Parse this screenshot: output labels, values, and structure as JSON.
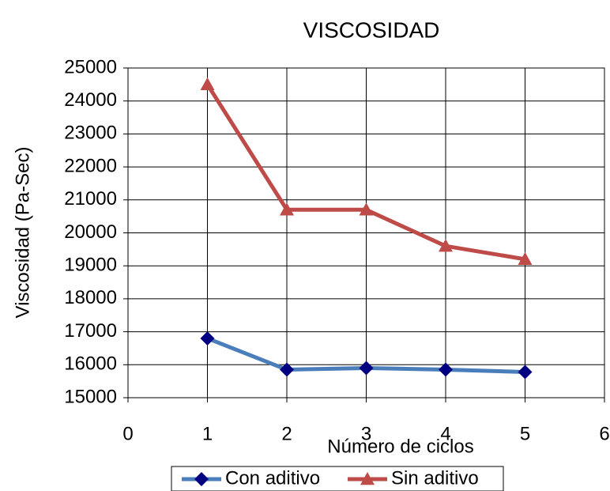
{
  "chart_data": {
    "type": "line",
    "title": "VISCOSIDAD",
    "x_label": "Número de ciclos",
    "y_label": "Viscosidad  (Pa-Sec)",
    "x": [
      1,
      2,
      3,
      4,
      5
    ],
    "series": [
      {
        "name": "Con aditivo",
        "color": "#4a7ebb",
        "marker_color": "#000080",
        "marker": "diamond",
        "values": [
          16800,
          15850,
          15900,
          15850,
          15780
        ]
      },
      {
        "name": "Sin aditivo",
        "color": "#be4b48",
        "marker_color": "#be4b48",
        "marker": "triangle",
        "values": [
          24500,
          20700,
          20700,
          19600,
          19200
        ]
      }
    ],
    "xlim": [
      0,
      6
    ],
    "xticks": [
      0,
      1,
      2,
      3,
      4,
      5,
      6
    ],
    "ylim": [
      15000,
      25000
    ],
    "yticks": [
      15000,
      16000,
      17000,
      18000,
      19000,
      20000,
      21000,
      22000,
      23000,
      24000,
      25000
    ],
    "grid": true,
    "legend": "bottom"
  }
}
